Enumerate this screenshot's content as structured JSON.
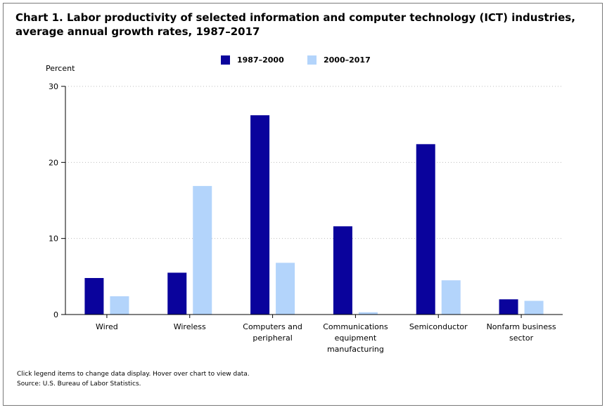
{
  "title_line1": "Chart 1. Labor productivity of selected information and computer technology (ICT) industries,",
  "title_line2": "average annual growth rates, 1987–2017",
  "footnote_line1": "Click legend items to change data display. Hover over chart to view data.",
  "footnote_line2": "Source: U.S. Bureau of Labor Statistics.",
  "chart_data": {
    "type": "bar",
    "title": "Chart 1. Labor productivity of selected information and computer technology (ICT) industries, average annual growth rates, 1987–2017",
    "ylabel": "Percent",
    "xlabel": "",
    "ylim": [
      0,
      30
    ],
    "yticks": [
      0,
      10,
      20,
      30
    ],
    "grid": true,
    "legend_position": "top-center",
    "categories": [
      [
        "Wired"
      ],
      [
        "Wireless"
      ],
      [
        "Computers and",
        "peripheral"
      ],
      [
        "Communications",
        "equipment",
        "manufacturing"
      ],
      [
        "Semiconductor"
      ],
      [
        "Nonfarm business",
        "sector"
      ]
    ],
    "series": [
      {
        "name": "1987–2000",
        "color": "#0a039c",
        "values": [
          4.8,
          5.5,
          26.2,
          11.6,
          22.4,
          2.0
        ]
      },
      {
        "name": "2000–2017",
        "color": "#b3d4fb",
        "values": [
          2.4,
          16.9,
          6.8,
          0.3,
          4.5,
          1.8
        ]
      }
    ]
  }
}
